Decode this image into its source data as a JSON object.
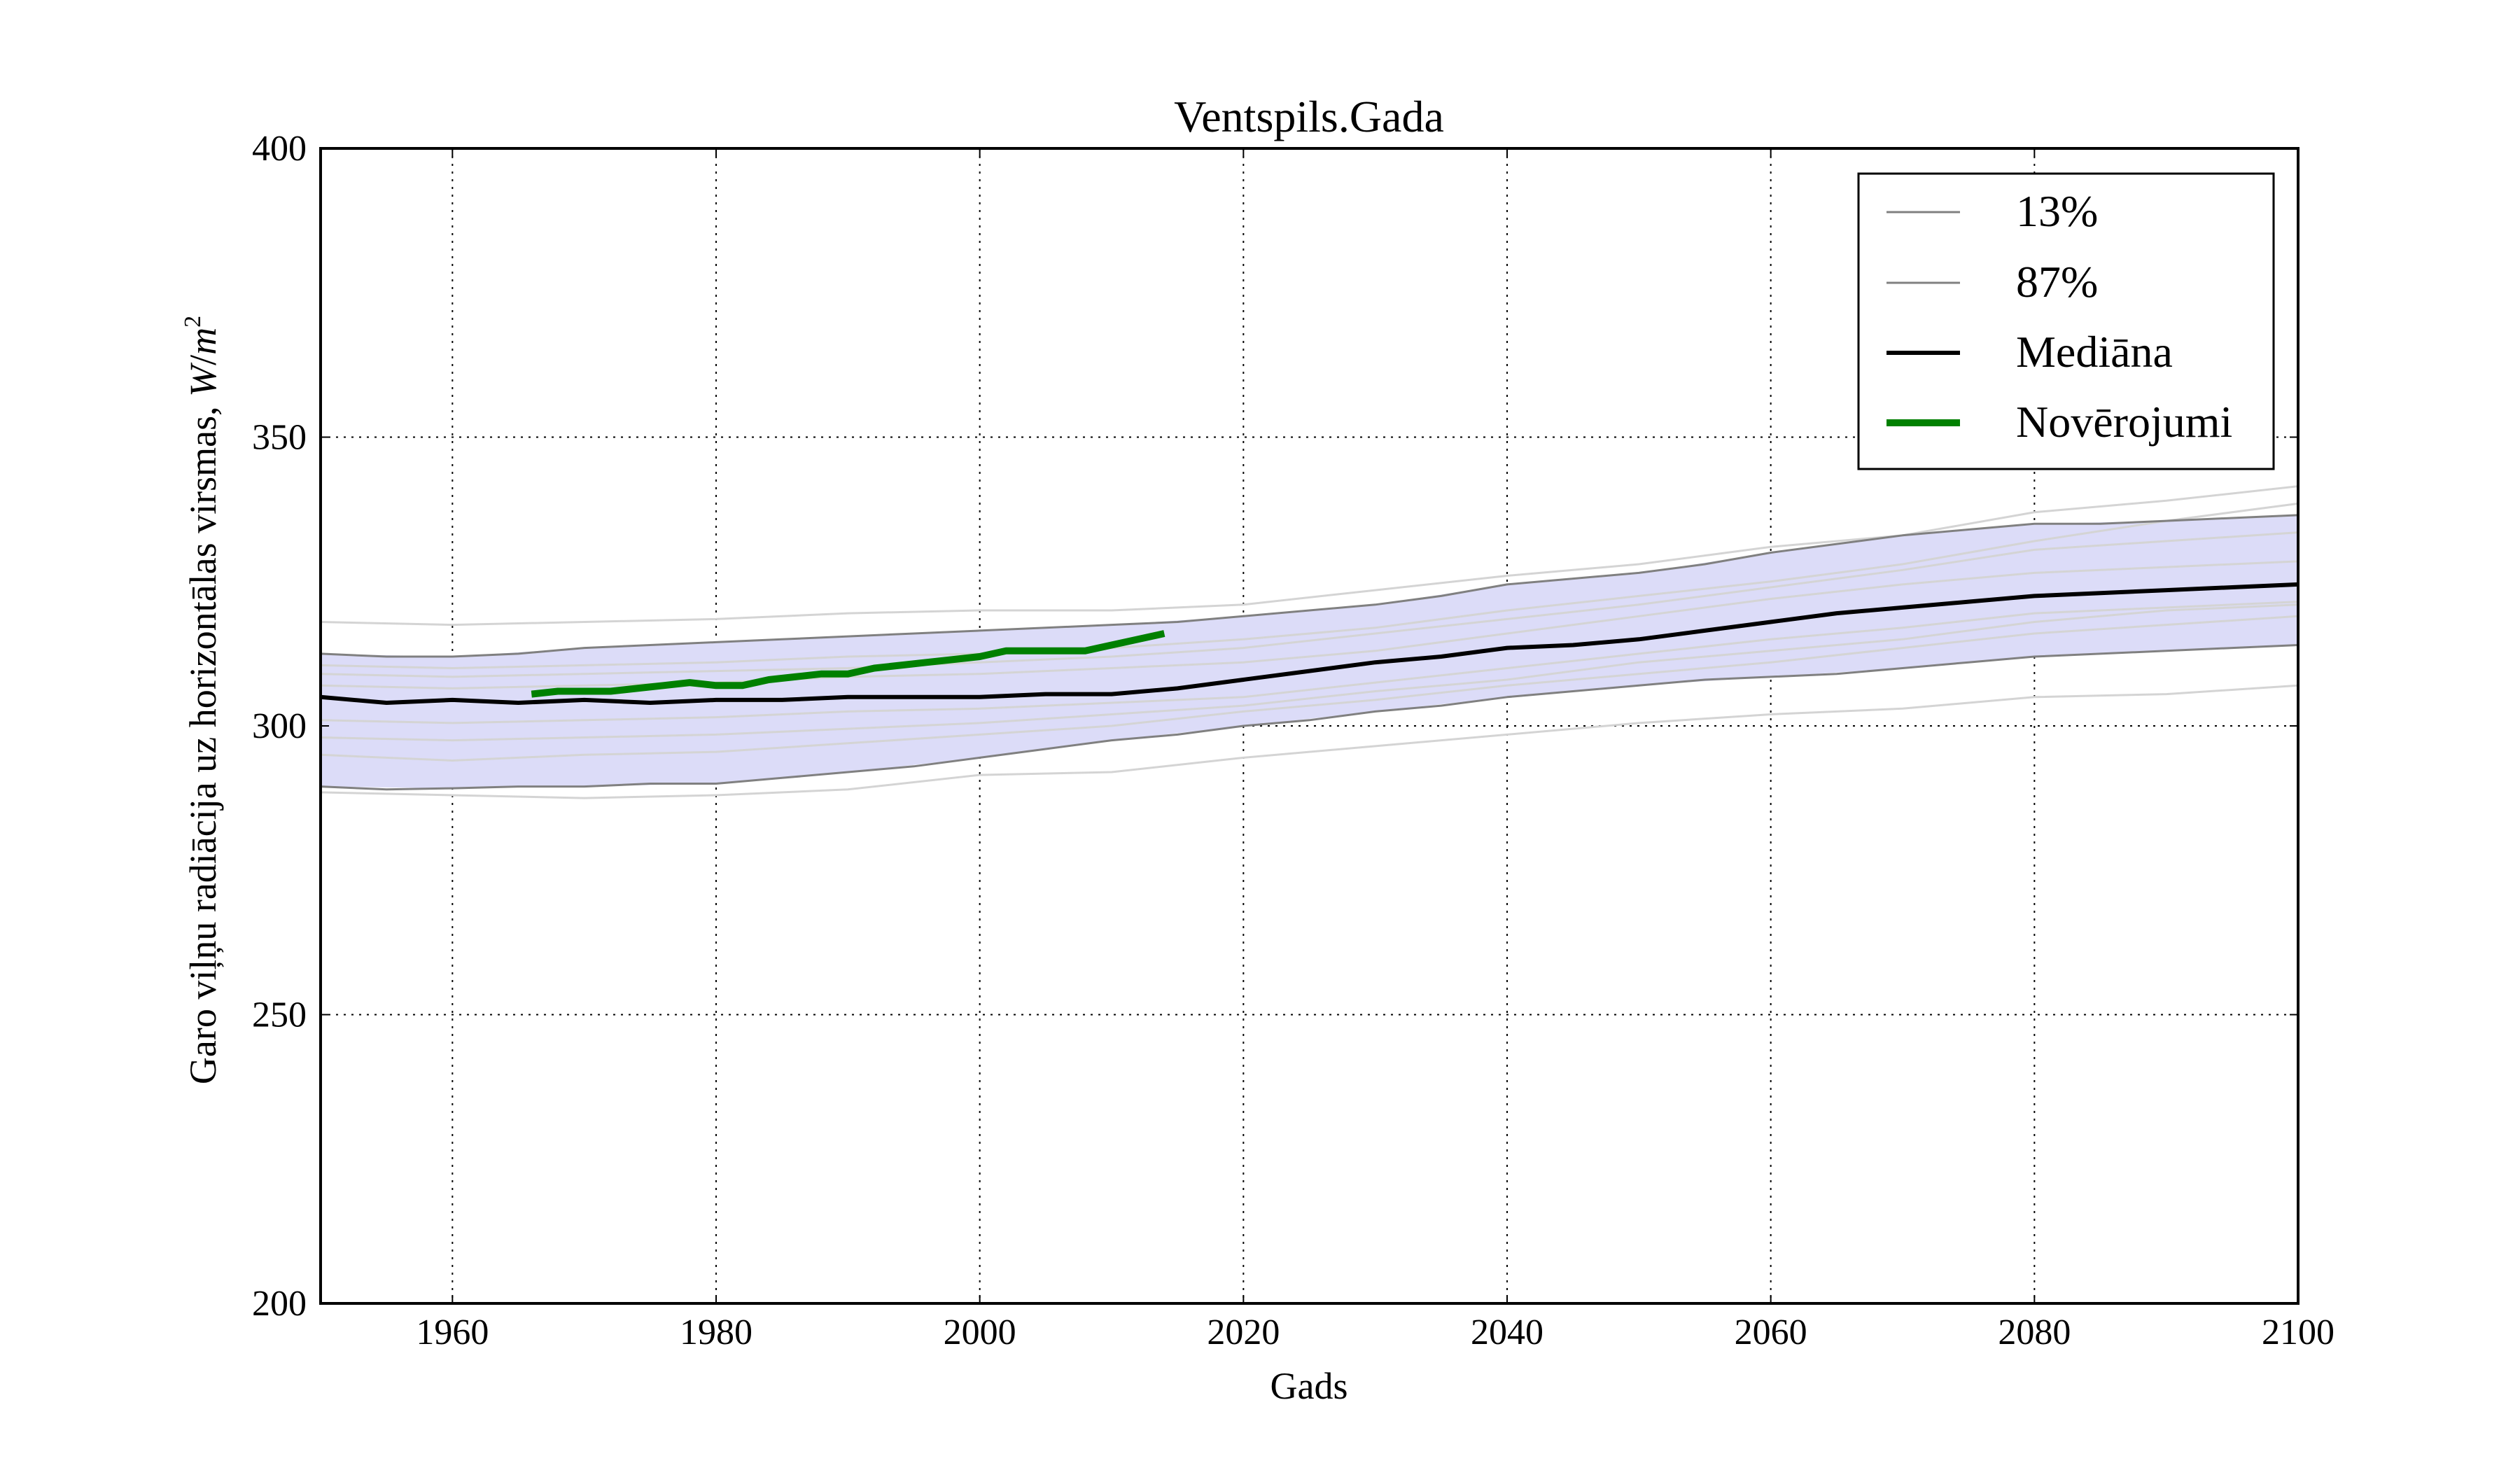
{
  "chart_data": {
    "type": "line",
    "title": "Ventspils.Gada",
    "xlabel": "Gads",
    "ylabel": "Garo viļņu radiācija uz horizontālas virsmas, W/m²",
    "ylabel_main": "Garo viļņu radiācija uz horizontālas virsmas, ",
    "ylabel_unit_w": "W",
    "ylabel_unit_slash": "/",
    "ylabel_unit_m": "m",
    "ylabel_unit_exp": "2",
    "xlim": [
      1950,
      2100
    ],
    "ylim": [
      200,
      400
    ],
    "x_ticks": [
      1960,
      1980,
      2000,
      2020,
      2040,
      2060,
      2080,
      2100
    ],
    "y_ticks": [
      200,
      250,
      300,
      350,
      400
    ],
    "grid": true,
    "legend_position": "top-right",
    "legend": [
      {
        "label": "13%",
        "color": "#808080",
        "style": "thin"
      },
      {
        "label": "87%",
        "color": "#808080",
        "style": "thin"
      },
      {
        "label": "Mediāna",
        "color": "#000000",
        "style": "medium"
      },
      {
        "label": "Novērojumi",
        "color": "#008000",
        "style": "thick"
      }
    ],
    "band": {
      "name": "13%–87%",
      "color": "#dcdcf8",
      "x": [
        1950,
        1960,
        1970,
        1980,
        1990,
        2000,
        2010,
        2020,
        2030,
        2040,
        2050,
        2060,
        2070,
        2080,
        2090,
        2100
      ],
      "lower": [
        289.5,
        289.2,
        289.5,
        290.0,
        292.0,
        294.5,
        297.5,
        300.0,
        302.5,
        305.0,
        307.0,
        308.5,
        310.0,
        312.0,
        313.0,
        314.0
      ],
      "upper": [
        312.5,
        312.0,
        313.5,
        314.5,
        315.5,
        316.5,
        317.5,
        319.0,
        321.0,
        324.5,
        326.5,
        330.0,
        333.0,
        335.0,
        335.5,
        336.5
      ]
    },
    "series": [
      {
        "name": "13%",
        "color": "#808080",
        "width": "thin",
        "x": [
          1950,
          1955,
          1960,
          1965,
          1970,
          1975,
          1980,
          1985,
          1990,
          1995,
          2000,
          2005,
          2010,
          2015,
          2020,
          2025,
          2030,
          2035,
          2040,
          2045,
          2050,
          2055,
          2060,
          2065,
          2070,
          2075,
          2080,
          2085,
          2090,
          2095,
          2100
        ],
        "values": [
          289.5,
          289.0,
          289.2,
          289.5,
          289.5,
          290.0,
          290.0,
          291.0,
          292.0,
          293.0,
          294.5,
          296.0,
          297.5,
          298.5,
          300.0,
          301.0,
          302.5,
          303.5,
          305.0,
          306.0,
          307.0,
          308.0,
          308.5,
          309.0,
          310.0,
          311.0,
          312.0,
          312.5,
          313.0,
          313.5,
          314.0
        ]
      },
      {
        "name": "87%",
        "color": "#808080",
        "width": "thin",
        "x": [
          1950,
          1955,
          1960,
          1965,
          1970,
          1975,
          1980,
          1985,
          1990,
          1995,
          2000,
          2005,
          2010,
          2015,
          2020,
          2025,
          2030,
          2035,
          2040,
          2045,
          2050,
          2055,
          2060,
          2065,
          2070,
          2075,
          2080,
          2085,
          2090,
          2095,
          2100
        ],
        "values": [
          312.5,
          312.0,
          312.0,
          312.5,
          313.5,
          314.0,
          314.5,
          315.0,
          315.5,
          316.0,
          316.5,
          317.0,
          317.5,
          318.0,
          319.0,
          320.0,
          321.0,
          322.5,
          324.5,
          325.5,
          326.5,
          328.0,
          330.0,
          331.5,
          333.0,
          334.0,
          335.0,
          335.0,
          335.5,
          336.0,
          336.5
        ]
      },
      {
        "name": "Mediāna",
        "color": "#000000",
        "width": "medium",
        "x": [
          1950,
          1955,
          1960,
          1965,
          1970,
          1975,
          1980,
          1985,
          1990,
          1995,
          2000,
          2005,
          2010,
          2015,
          2020,
          2025,
          2030,
          2035,
          2040,
          2045,
          2050,
          2055,
          2060,
          2065,
          2070,
          2075,
          2080,
          2085,
          2090,
          2095,
          2100
        ],
        "values": [
          305.0,
          304.0,
          304.5,
          304.0,
          304.5,
          304.0,
          304.5,
          304.5,
          305.0,
          305.0,
          305.0,
          305.5,
          305.5,
          306.5,
          308.0,
          309.5,
          311.0,
          312.0,
          313.5,
          314.0,
          315.0,
          316.5,
          318.0,
          319.5,
          320.5,
          321.5,
          322.5,
          323.0,
          323.5,
          324.0,
          324.5
        ]
      },
      {
        "name": "Novērojumi",
        "color": "#008000",
        "width": "thick",
        "x": [
          1966,
          1968,
          1970,
          1972,
          1974,
          1976,
          1978,
          1980,
          1982,
          1984,
          1986,
          1988,
          1990,
          1992,
          1994,
          1996,
          1998,
          2000,
          2002,
          2004,
          2006,
          2008,
          2010,
          2012,
          2014
        ],
        "values": [
          305.5,
          306.0,
          306.0,
          306.0,
          306.5,
          307.0,
          307.5,
          307.0,
          307.0,
          308.0,
          308.5,
          309.0,
          309.0,
          310.0,
          310.5,
          311.0,
          311.5,
          312.0,
          313.0,
          313.0,
          313.0,
          313.0,
          314.0,
          315.0,
          316.0
        ]
      }
    ],
    "ensemble_members": {
      "color": "#d4d4d4",
      "x": [
        1950,
        1960,
        1970,
        1980,
        1990,
        2000,
        2010,
        2020,
        2030,
        2040,
        2050,
        2060,
        2070,
        2080,
        2090,
        2100
      ],
      "members": [
        [
          318.0,
          317.5,
          318.0,
          318.5,
          319.5,
          320.0,
          320.0,
          321.0,
          323.5,
          326.0,
          328.0,
          331.0,
          333.0,
          337.0,
          339.0,
          341.5
        ],
        [
          288.5,
          288.0,
          287.5,
          288.0,
          289.0,
          291.5,
          292.0,
          294.5,
          296.5,
          298.5,
          300.5,
          302.0,
          303.0,
          305.0,
          305.5,
          307.0
        ],
        [
          309.0,
          308.5,
          309.0,
          309.5,
          310.0,
          311.0,
          312.0,
          313.5,
          316.0,
          318.5,
          321.0,
          324.0,
          327.0,
          330.5,
          332.0,
          333.5
        ],
        [
          295.0,
          294.0,
          295.0,
          295.5,
          297.0,
          298.5,
          300.0,
          302.5,
          304.5,
          307.0,
          309.0,
          311.0,
          313.5,
          316.0,
          317.5,
          319.0
        ],
        [
          301.0,
          300.5,
          301.0,
          301.5,
          302.5,
          303.0,
          304.0,
          305.0,
          307.5,
          310.0,
          312.5,
          315.0,
          317.0,
          319.5,
          320.5,
          321.5
        ],
        [
          307.0,
          306.5,
          307.0,
          307.5,
          308.5,
          309.0,
          310.0,
          311.0,
          313.0,
          316.0,
          319.0,
          322.0,
          324.5,
          326.5,
          327.5,
          328.5
        ],
        [
          298.0,
          297.5,
          298.0,
          298.5,
          299.5,
          300.5,
          302.0,
          303.5,
          306.0,
          308.0,
          311.0,
          313.0,
          315.0,
          318.0,
          320.0,
          321.0
        ],
        [
          310.5,
          310.0,
          310.5,
          311.0,
          312.0,
          312.5,
          313.5,
          315.0,
          317.0,
          320.0,
          322.5,
          325.0,
          328.0,
          332.0,
          335.5,
          338.5
        ]
      ]
    }
  }
}
